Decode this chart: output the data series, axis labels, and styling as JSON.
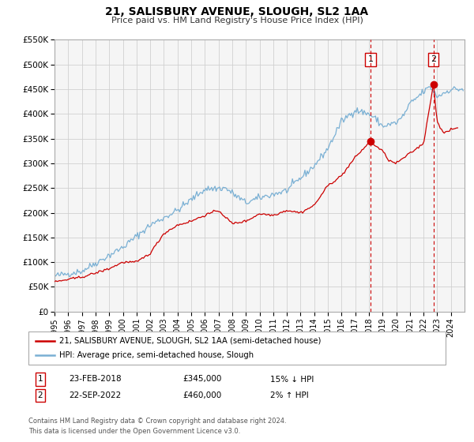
{
  "title": "21, SALISBURY AVENUE, SLOUGH, SL2 1AA",
  "subtitle": "Price paid vs. HM Land Registry's House Price Index (HPI)",
  "legend_label_red": "21, SALISBURY AVENUE, SLOUGH, SL2 1AA (semi-detached house)",
  "legend_label_blue": "HPI: Average price, semi-detached house, Slough",
  "annotation1_label": "1",
  "annotation1_date": "23-FEB-2018",
  "annotation1_price": "£345,000",
  "annotation1_hpi": "15% ↓ HPI",
  "annotation1_year": 2018.12,
  "annotation1_value": 345000,
  "annotation2_label": "2",
  "annotation2_date": "22-SEP-2022",
  "annotation2_price": "£460,000",
  "annotation2_hpi": "2% ↑ HPI",
  "annotation2_year": 2022.72,
  "annotation2_value": 460000,
  "footer_line1": "Contains HM Land Registry data © Crown copyright and database right 2024.",
  "footer_line2": "This data is licensed under the Open Government Licence v3.0.",
  "xmin": 1995,
  "xmax": 2025,
  "ymin": 0,
  "ymax": 550000,
  "yticks": [
    0,
    50000,
    100000,
    150000,
    200000,
    250000,
    300000,
    350000,
    400000,
    450000,
    500000,
    550000
  ],
  "ytick_labels": [
    "£0",
    "£50K",
    "£100K",
    "£150K",
    "£200K",
    "£250K",
    "£300K",
    "£350K",
    "£400K",
    "£450K",
    "£500K",
    "£550K"
  ],
  "red_color": "#cc0000",
  "blue_color": "#7ab0d4",
  "grid_color": "#d0d0d0",
  "bg_color": "#f5f5f5"
}
